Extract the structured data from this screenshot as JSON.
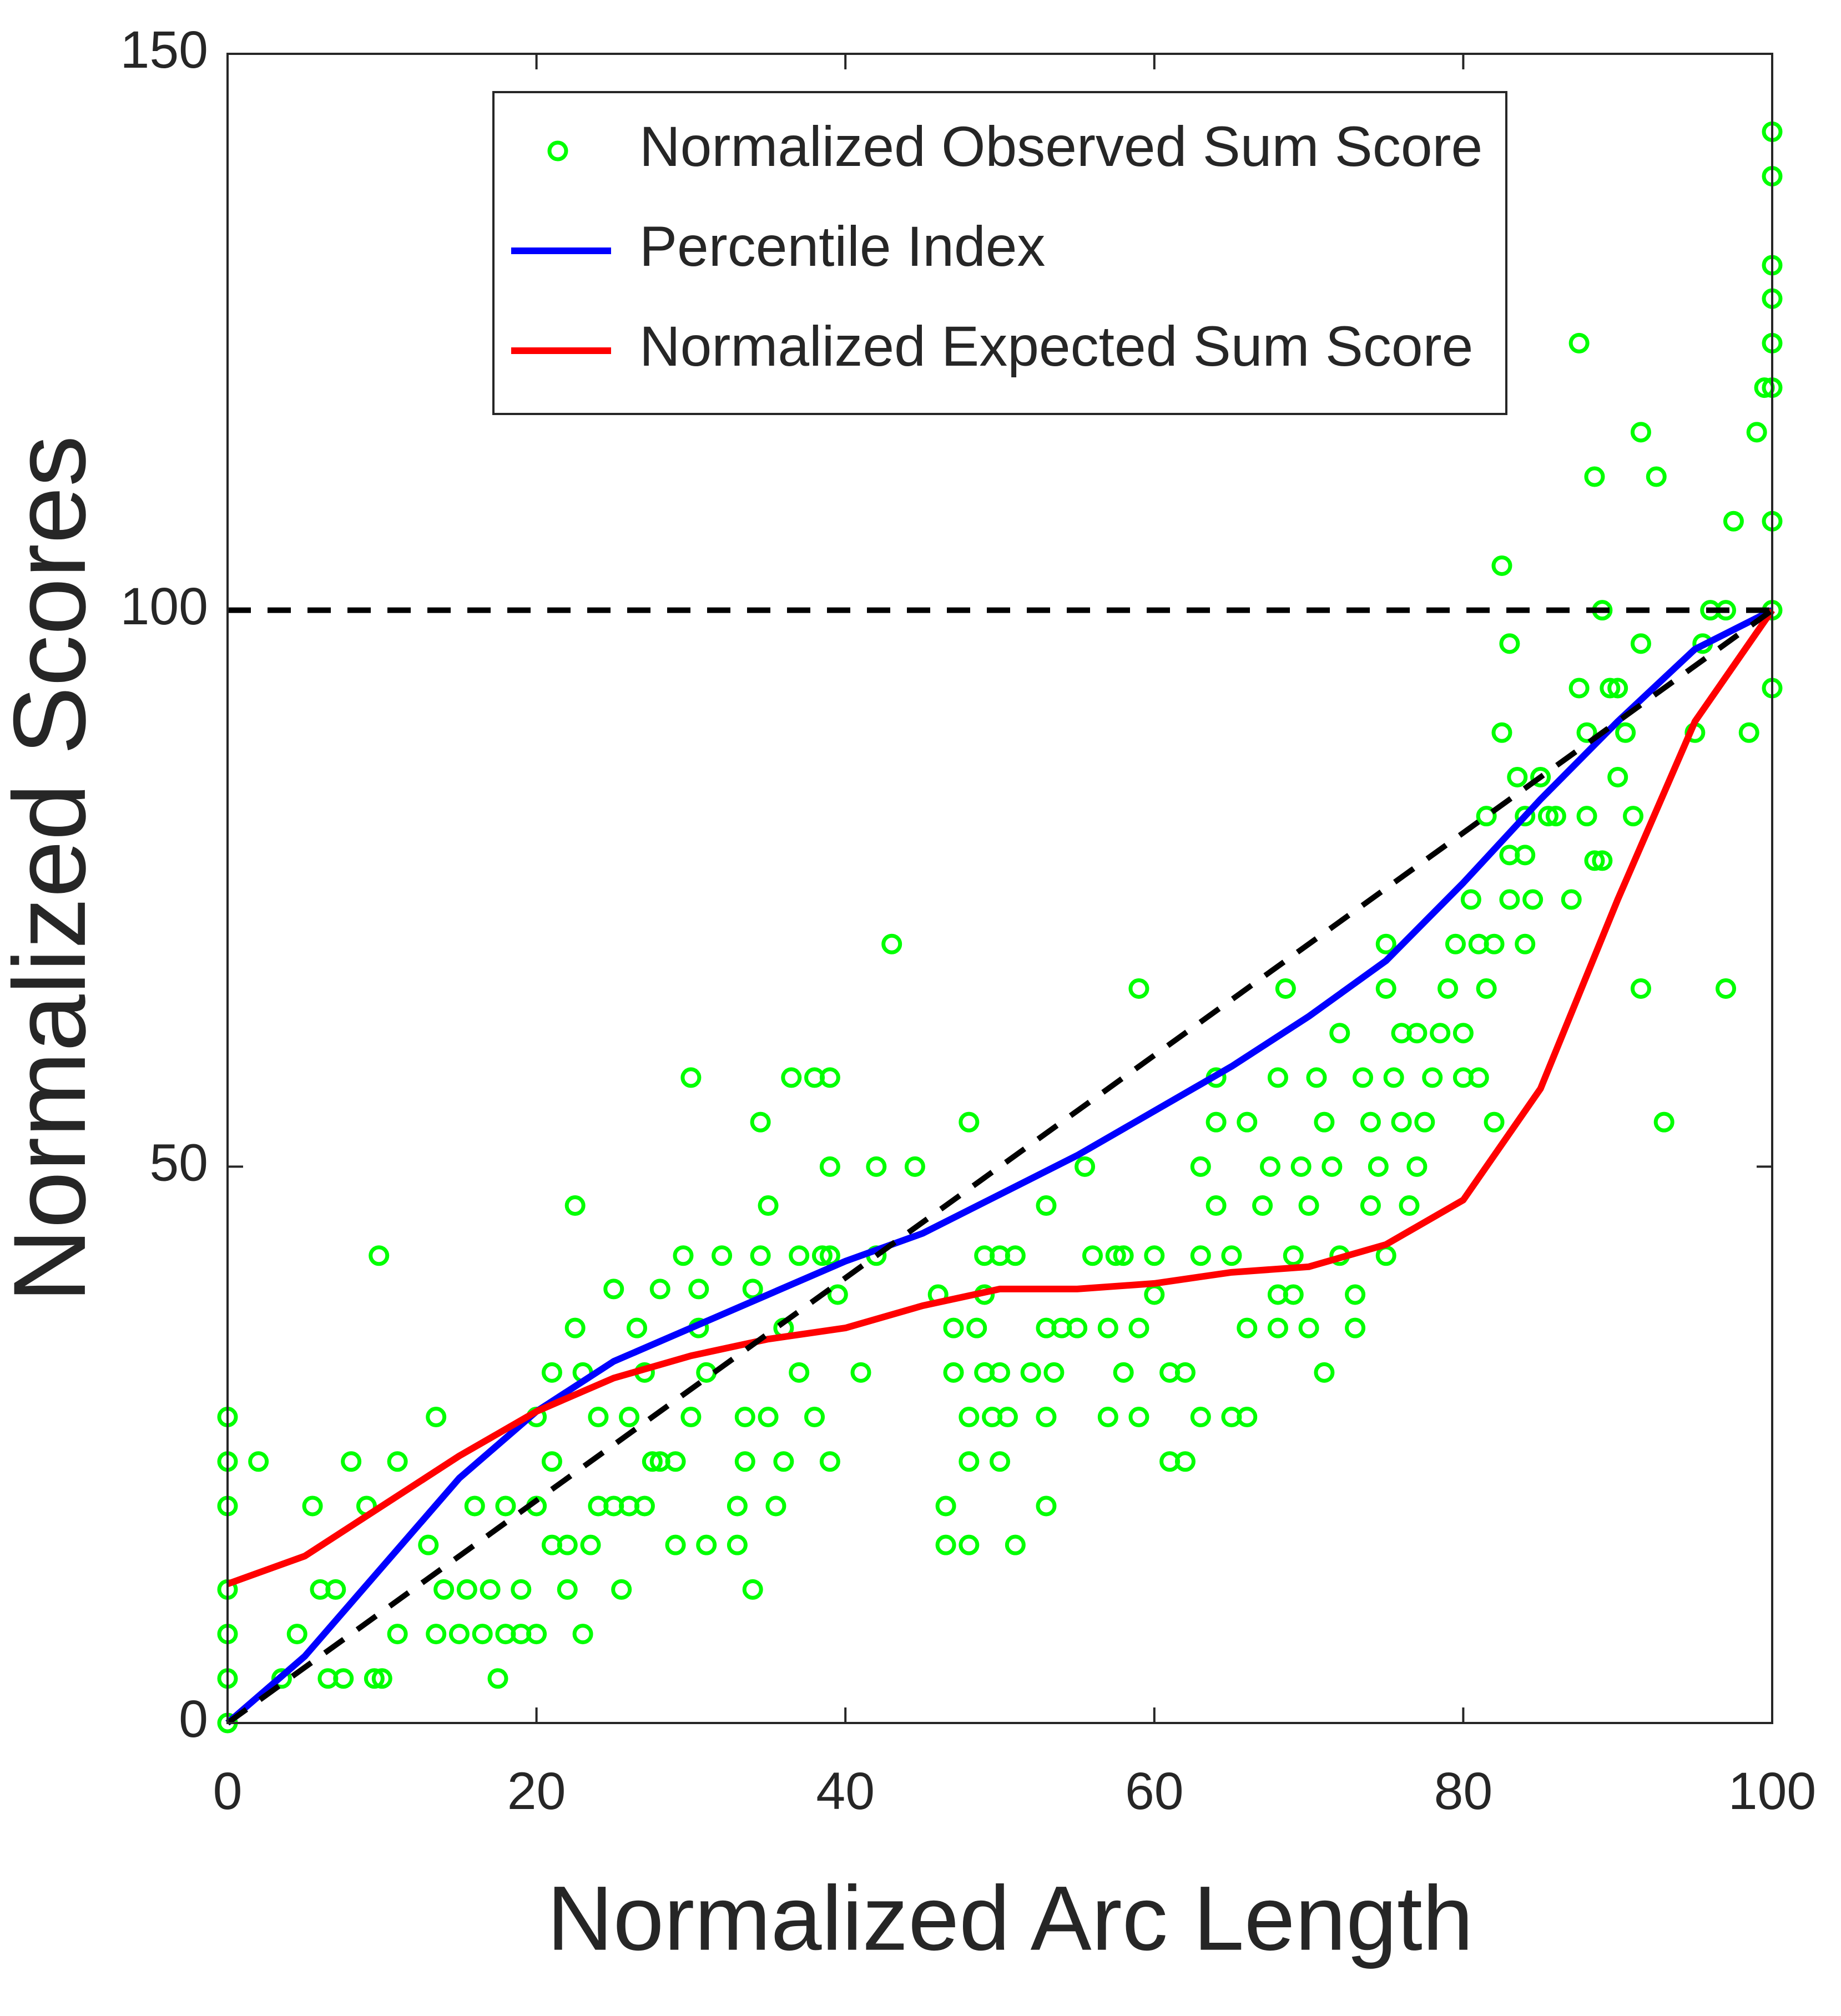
{
  "chart_data": {
    "type": "scatter",
    "xlabel": "Normalized Arc Length",
    "ylabel": "Normalized Scores",
    "xlim": [
      0,
      100
    ],
    "xticks": [
      0,
      20,
      40,
      60,
      80,
      100
    ],
    "ylim": [
      0,
      150
    ],
    "yticks": [
      0,
      50,
      100,
      150
    ],
    "legend": "top",
    "series": [
      {
        "name": "Normalized Observed Sum Score",
        "type": "scatter",
        "color": "#00ff00",
        "x": [
          0,
          0,
          0,
          0,
          0,
          0,
          0,
          2,
          3.5,
          4.5,
          5.5,
          6,
          6.5,
          7,
          7.5,
          8,
          9,
          9.5,
          10,
          9.8,
          11,
          11,
          13,
          13.5,
          13.5,
          14,
          15,
          15.5,
          16,
          16.5,
          17,
          17.5,
          18,
          18,
          19,
          19,
          20,
          20,
          20,
          21,
          21,
          21,
          22,
          22,
          22.5,
          22.5,
          23,
          23,
          23.5,
          24,
          24,
          25,
          25,
          26,
          26,
          25.5,
          26.5,
          27,
          27,
          27.5,
          28,
          28,
          29,
          29,
          29.5,
          30,
          30,
          30.5,
          30.5,
          31,
          31,
          32,
          33,
          33,
          33.5,
          33.5,
          34,
          34,
          34.5,
          34.5,
          35,
          35,
          35.5,
          36,
          36,
          36.5,
          37,
          37,
          38,
          38,
          38.5,
          39,
          39,
          39,
          39,
          39.5,
          41,
          42,
          42,
          43,
          44.5,
          46,
          46.5,
          46.5,
          47,
          47,
          48,
          48,
          48,
          48,
          48.5,
          49,
          49,
          49,
          49.5,
          50,
          50,
          50,
          50.5,
          51,
          51,
          52,
          53,
          53,
          53,
          53,
          53.5,
          54,
          55,
          55.5,
          56,
          57,
          57,
          57.5,
          58,
          58,
          59,
          59,
          59,
          60,
          60,
          61,
          61,
          62,
          62,
          63,
          63,
          63,
          64,
          64,
          64,
          65,
          65,
          66,
          66,
          66,
          67,
          67.5,
          68,
          68,
          68,
          68.5,
          69,
          69,
          69.5,
          70,
          70,
          70.5,
          71,
          71,
          71.5,
          72,
          72,
          73,
          73,
          73.5,
          74,
          74,
          74.5,
          75,
          75,
          75,
          75.5,
          76,
          76,
          76.5,
          77,
          77,
          77.5,
          78,
          78.5,
          79,
          79.5,
          80,
          80,
          80.5,
          81,
          81,
          81.5,
          81.5,
          82,
          82,
          82.5,
          83,
          83,
          83.5,
          84,
          84,
          84,
          84.5,
          85,
          85.5,
          86,
          82.5,
          83,
          87,
          87.5,
          88,
          88,
          88.5,
          88.5,
          89,
          89,
          89.5,
          90,
          90,
          90.5,
          91,
          91.5,
          91.5,
          91.5,
          92.5,
          93,
          87.5,
          95,
          95.5,
          96,
          97,
          97,
          97.5,
          98.5,
          99,
          99.5,
          100,
          100,
          100,
          100,
          100,
          100,
          100,
          100,
          100
        ],
        "values": [
          0,
          4,
          8,
          12,
          19.5,
          23.5,
          27.5,
          23.5,
          4,
          8,
          19.5,
          12,
          4,
          12,
          4,
          23.5,
          19.5,
          4,
          4,
          42,
          8,
          23.5,
          16,
          8,
          27.5,
          12,
          8,
          12,
          19.5,
          8,
          12,
          4,
          8,
          19.5,
          12,
          8,
          8,
          27.5,
          19.5,
          16,
          23.5,
          31.5,
          16,
          12,
          35.5,
          46.5,
          8,
          31.5,
          16,
          27.5,
          19.5,
          19.5,
          39,
          19.5,
          27.5,
          12,
          35.5,
          31.5,
          19.5,
          23.5,
          39,
          23.5,
          23.5,
          16,
          42,
          27.5,
          58,
          39,
          35.5,
          31.5,
          16,
          42,
          19.5,
          16,
          27.5,
          23.5,
          12,
          39,
          54,
          42,
          46.5,
          27.5,
          19.5,
          35.5,
          23.5,
          58,
          31.5,
          42,
          58,
          27.5,
          42,
          50,
          58,
          23.5,
          42,
          38.5,
          31.5,
          42,
          50,
          70,
          50,
          38.5,
          16,
          19.5,
          31.5,
          35.5,
          23.5,
          16,
          54,
          27.5,
          35.5,
          31.5,
          42,
          38.5,
          27.5,
          23.5,
          31.5,
          42,
          27.5,
          16,
          42,
          31.5,
          19.5,
          27.5,
          46.5,
          35.5,
          31.5,
          35.5,
          35.5,
          50,
          42,
          27.5,
          35.5,
          42,
          31.5,
          42,
          35.5,
          66,
          27.5,
          38.5,
          42,
          31.5,
          23.5,
          23.5,
          31.5,
          27.5,
          50,
          42,
          58,
          54,
          46.5,
          27.5,
          42,
          27.5,
          35.5,
          54,
          46.5,
          50,
          38.5,
          58,
          35.5,
          66,
          42,
          38.5,
          50,
          46.5,
          35.5,
          58,
          31.5,
          54,
          50,
          62,
          42,
          38.5,
          35.5,
          58,
          54,
          46.5,
          50,
          70,
          42,
          66,
          58,
          62,
          54,
          46.5,
          50,
          62,
          54,
          58,
          62,
          66,
          70,
          62,
          58,
          74,
          58,
          70,
          81.5,
          66,
          70,
          54,
          89,
          78,
          74,
          85,
          81.5,
          78,
          70,
          74,
          85,
          81.5,
          81.5,
          104,
          97,
          74,
          93,
          89,
          81.5,
          77.5,
          112,
          77.5,
          100,
          93,
          85,
          93,
          89,
          81.5,
          66,
          97,
          116,
          112,
          54,
          124,
          89,
          97,
          100,
          100,
          66,
          108,
          89,
          116,
          120,
          143,
          139,
          131,
          128,
          124,
          120,
          108,
          100,
          93
        ]
      },
      {
        "name": "Percentile Index",
        "type": "line",
        "color": "#0000ff",
        "x": [
          0,
          5,
          10,
          15,
          20,
          25,
          30,
          35,
          40,
          45,
          50,
          55,
          60,
          65,
          70,
          75,
          80,
          85,
          90,
          95,
          100
        ],
        "values": [
          0,
          6,
          14,
          22,
          28,
          32.5,
          35.5,
          38.5,
          41.5,
          44,
          47.5,
          51,
          55,
          59,
          63.5,
          68.5,
          75.5,
          83,
          90,
          96.5,
          100
        ]
      },
      {
        "name": "Normalized Expected Sum Score",
        "type": "line",
        "color": "#ff0000",
        "x": [
          0,
          5,
          10,
          15,
          20,
          25,
          30,
          35,
          40,
          45,
          50,
          55,
          60,
          65,
          70,
          75,
          80,
          85,
          90,
          95,
          100
        ],
        "values": [
          12.5,
          15,
          19.5,
          24,
          28,
          31,
          33,
          34.5,
          35.5,
          37.5,
          39,
          39,
          39.5,
          40.5,
          41,
          43,
          47,
          57,
          74,
          90,
          100
        ]
      },
      {
        "type": "line",
        "color": "#000000",
        "dash": true,
        "x": [
          0,
          100
        ],
        "values": [
          0,
          100
        ]
      },
      {
        "type": "line",
        "color": "#000000",
        "dash": true,
        "x": [
          0,
          100
        ],
        "values": [
          100,
          100
        ]
      }
    ]
  }
}
